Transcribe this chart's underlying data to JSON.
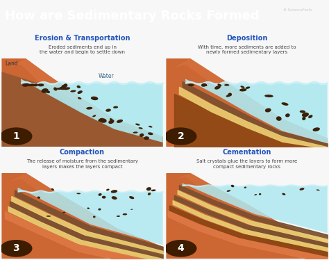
{
  "title": "How are Sedimentary Rocks Formed",
  "bg_color": "#f7f7f7",
  "header_bg": "#3d1c00",
  "header_text_color": "#ffffff",
  "border_color": "#cccccc",
  "colors": {
    "land_top": "#cc6633",
    "land_bottom": "#b85522",
    "land_light": "#dd7744",
    "water": "#aee8f0",
    "water_wave": "#c8f0f8",
    "sand_layer": "#e8cc70",
    "dark_sed": "#7a5030",
    "brown_sed": "#8b4513",
    "rock_dark": "#3a2008",
    "sky": "#f7f7f7"
  },
  "panels": [
    {
      "num": "1",
      "title": "Erosion & Transportation",
      "subtitle": "Eroded sediments end up in\nthe water and begin to settle down",
      "label_land": "Land",
      "label_water": "Water"
    },
    {
      "num": "2",
      "title": "Deposition",
      "subtitle": "With time, more sediments are added to\nnewly formed sedimentary layers",
      "label_land": "",
      "label_water": ""
    },
    {
      "num": "3",
      "title": "Compaction",
      "subtitle": "The release of moisture from the sedimentary\nlayers makes the layers compact",
      "label_land": "",
      "label_water": ""
    },
    {
      "num": "4",
      "title": "Cementation",
      "subtitle": "Salt crystals glue the layers to form more\ncompact sedimentary rocks",
      "label_land": "",
      "label_water": ""
    }
  ],
  "panel_title_color": "#2255bb",
  "panel_subtitle_color": "#444444",
  "num_color": "#ffffff",
  "num_bg": "#3d1c00"
}
